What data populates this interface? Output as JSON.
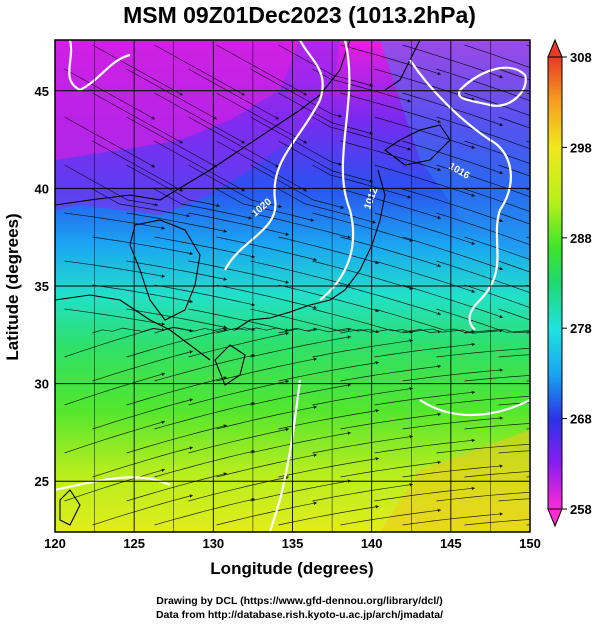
{
  "title": "MSM 09Z01Dec2023 (1013.2hPa)",
  "map": {
    "xlabel": "Longitude (degrees)",
    "ylabel": "Latitude  (degrees)",
    "xlim": [
      120,
      150
    ],
    "ylim": [
      22.4,
      47.6
    ],
    "xticks": [
      "120",
      "125",
      "130",
      "135",
      "140",
      "145",
      "150"
    ],
    "yticks": [
      "25",
      "30",
      "35",
      "40",
      "45"
    ],
    "field": "temperature",
    "contour_labels": [
      "1020",
      "1016",
      "1012"
    ]
  },
  "colorbar": {
    "min": 258,
    "max": 308,
    "tick_labels": [
      "308",
      "298",
      "288",
      "278",
      "268",
      "258"
    ],
    "colors": [
      "#ff2bd6",
      "#8a1cf0",
      "#2a33e8",
      "#18a7f0",
      "#1fe3e0",
      "#1fd870",
      "#3ee62a",
      "#b8f01a",
      "#f0e81c",
      "#f5a020",
      "#e83a24"
    ]
  },
  "credits": {
    "line1": "Drawing by DCL (https://www.gfd-dennou.org/library/dcl/)",
    "line2": "Data from http://database.rish.kyoto-u.ac.jp/arch/jmadata/"
  }
}
